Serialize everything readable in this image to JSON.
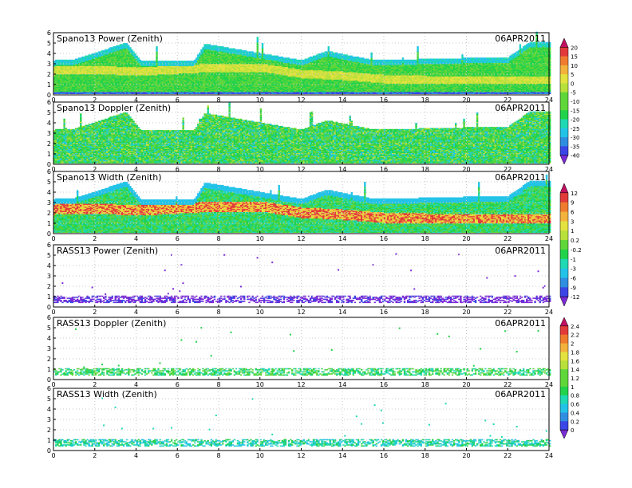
{
  "figure": {
    "panels": [
      {
        "id": "spano-power",
        "title": "Spano13 Power (Zenith)",
        "date": "06APR2011",
        "colorbar": "cb1",
        "kind": "spano-power",
        "top": 3.3
      },
      {
        "id": "spano-doppler",
        "title": "Spano13 Doppler (Zenith)",
        "date": "06APR2011",
        "colorbar": "cb1",
        "kind": "spano-doppler",
        "top": 3.3
      },
      {
        "id": "spano-width",
        "title": "Spano13 Width (Zenith)",
        "date": "06APR2011",
        "colorbar": "cb2",
        "kind": "spano-width",
        "top": 3.3
      },
      {
        "id": "rass-power",
        "title": "RASS13 Power (Zenith)",
        "date": "06APR2011",
        "colorbar": "cb2",
        "kind": "rass-power",
        "top": 1.0
      },
      {
        "id": "rass-doppler",
        "title": "RASS13 Doppler (Zenith)",
        "date": "06APR2011",
        "colorbar": "cb3",
        "kind": "rass-doppler",
        "top": 1.0
      },
      {
        "id": "rass-width",
        "title": "RASS13 Width (Zenith)",
        "date": "06APR2011",
        "colorbar": "cb3",
        "kind": "rass-width",
        "top": 1.0
      }
    ],
    "colorbars": [
      {
        "id": "cb1",
        "labels": [
          "20",
          "15",
          "10",
          "5",
          "0",
          "-5",
          "-10",
          "-15",
          "-20",
          "-25",
          "-30",
          "-35",
          "-40"
        ]
      },
      {
        "id": "cb2",
        "labels": [
          "12",
          "9",
          "6",
          "3",
          "1",
          "0.2",
          "-0.2",
          "-1",
          "-3",
          "-6",
          "-9",
          "-12"
        ]
      },
      {
        "id": "cb3",
        "labels": [
          "2.4",
          "2.2",
          "2",
          "1.8",
          "1.6",
          "1.4",
          "1.2",
          "1",
          "0.8",
          "0.6",
          "0.4",
          "0.2",
          "0"
        ]
      }
    ],
    "palette": [
      "#7b2bd6",
      "#3a46e6",
      "#2f8ee0",
      "#23c3e8",
      "#1fd8b4",
      "#22d24a",
      "#5fd63a",
      "#b8e03a",
      "#e3e23f",
      "#f2b23c",
      "#ef7b2e",
      "#e23a3a",
      "#c21060"
    ]
  },
  "chart_data": [
    {
      "type": "heatmap",
      "title": "Spano13 Power (Zenith)",
      "annotation": "06APR2011",
      "x_ticks": [
        "0",
        "2",
        "4",
        "6",
        "8",
        "10",
        "12",
        "14",
        "16",
        "18",
        "20",
        "22",
        "24"
      ],
      "y_ticks": [
        "0",
        "1",
        "2",
        "3",
        "4",
        "5",
        "6"
      ],
      "xlim": [
        0,
        24
      ],
      "ylim": [
        0,
        6
      ],
      "colorbar_labels": [
        "20",
        "15",
        "10",
        "5",
        "0",
        "-5",
        "-10",
        "-15",
        "-20",
        "-25",
        "-30",
        "-35",
        "-40"
      ],
      "data_top_height": [
        [
          0,
          3.3
        ],
        [
          1,
          3.4
        ],
        [
          3.5,
          5.0
        ],
        [
          4.2,
          3.3
        ],
        [
          6.8,
          3.3
        ],
        [
          7.3,
          4.9
        ],
        [
          12,
          3.3
        ],
        [
          13.2,
          4.2
        ],
        [
          15.5,
          3.3
        ],
        [
          22,
          3.6
        ],
        [
          23,
          5.0
        ],
        [
          24,
          5.0
        ]
      ],
      "bright_band_height": [
        [
          0,
          2.3
        ],
        [
          2,
          2.4
        ],
        [
          4,
          2.2
        ],
        [
          6,
          2.4
        ],
        [
          8,
          2.6
        ],
        [
          10,
          2.6
        ],
        [
          12,
          2.0
        ],
        [
          14,
          1.8
        ],
        [
          16,
          1.5
        ],
        [
          18,
          1.4
        ],
        [
          20,
          1.4
        ],
        [
          22,
          1.4
        ],
        [
          24,
          1.4
        ]
      ]
    },
    {
      "type": "heatmap",
      "title": "Spano13 Doppler (Zenith)",
      "annotation": "06APR2011",
      "x_ticks": [
        "0",
        "2",
        "4",
        "6",
        "8",
        "10",
        "12",
        "14",
        "16",
        "18",
        "20",
        "22",
        "24"
      ],
      "y_ticks": [
        "0",
        "1",
        "2",
        "3",
        "4",
        "5",
        "6"
      ],
      "xlim": [
        0,
        24
      ],
      "ylim": [
        0,
        6
      ],
      "colorbar_labels": [
        "20",
        "15",
        "10",
        "5",
        "0",
        "-5",
        "-10",
        "-15",
        "-20",
        "-25",
        "-30",
        "-35",
        "-40"
      ]
    },
    {
      "type": "heatmap",
      "title": "Spano13 Width (Zenith)",
      "annotation": "06APR2011",
      "x_ticks": [
        "0",
        "2",
        "4",
        "6",
        "8",
        "10",
        "12",
        "14",
        "16",
        "18",
        "20",
        "22",
        "24"
      ],
      "y_ticks": [
        "0",
        "1",
        "2",
        "3",
        "4",
        "5",
        "6"
      ],
      "xlim": [
        0,
        24
      ],
      "ylim": [
        0,
        6
      ],
      "colorbar_labels": [
        "12",
        "9",
        "6",
        "3",
        "1",
        "0.2",
        "-0.2",
        "-1",
        "-3",
        "-6",
        "-9",
        "-12"
      ]
    },
    {
      "type": "heatmap",
      "title": "RASS13 Power (Zenith)",
      "annotation": "06APR2011",
      "x_ticks": [
        "0",
        "2",
        "4",
        "6",
        "8",
        "10",
        "12",
        "14",
        "16",
        "18",
        "20",
        "22",
        "24"
      ],
      "y_ticks": [
        "0",
        "1",
        "2",
        "3",
        "4",
        "5",
        "6"
      ],
      "xlim": [
        0,
        24
      ],
      "ylim": [
        0,
        6
      ],
      "colorbar_labels": [
        "12",
        "9",
        "6",
        "3",
        "1",
        "0.2",
        "-0.2",
        "-1",
        "-3",
        "-6",
        "-9",
        "-12"
      ]
    },
    {
      "type": "heatmap",
      "title": "RASS13 Doppler (Zenith)",
      "annotation": "06APR2011",
      "x_ticks": [
        "0",
        "2",
        "4",
        "6",
        "8",
        "10",
        "12",
        "14",
        "16",
        "18",
        "20",
        "22",
        "24"
      ],
      "y_ticks": [
        "0",
        "1",
        "2",
        "3",
        "4",
        "5",
        "6"
      ],
      "xlim": [
        0,
        24
      ],
      "ylim": [
        0,
        6
      ],
      "colorbar_labels": [
        "2.4",
        "2.2",
        "2",
        "1.8",
        "1.6",
        "1.4",
        "1.2",
        "1",
        "0.8",
        "0.6",
        "0.4",
        "0.2",
        "0"
      ]
    },
    {
      "type": "heatmap",
      "title": "RASS13 Width (Zenith)",
      "annotation": "06APR2011",
      "x_ticks": [
        "0",
        "2",
        "4",
        "6",
        "8",
        "10",
        "12",
        "14",
        "16",
        "18",
        "20",
        "22",
        "24"
      ],
      "y_ticks": [
        "0",
        "1",
        "2",
        "3",
        "4",
        "5",
        "6"
      ],
      "xlim": [
        0,
        24
      ],
      "ylim": [
        0,
        6
      ],
      "colorbar_labels": [
        "2.4",
        "2.2",
        "2",
        "1.8",
        "1.6",
        "1.4",
        "1.2",
        "1",
        "0.8",
        "0.6",
        "0.4",
        "0.2",
        "0"
      ]
    }
  ]
}
